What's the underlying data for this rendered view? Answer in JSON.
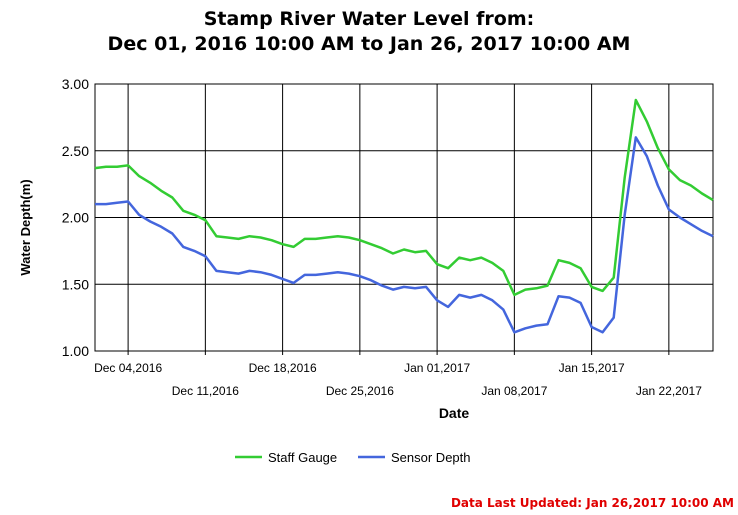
{
  "title_line1": "Stamp River Water Level from:",
  "title_line2": "Dec 01, 2016 10:00 AM to Jan 26, 2017 10:00 AM",
  "last_updated": "Data Last Updated: Jan 26,2017 10:00 AM",
  "colors": {
    "staff": "#33cc33",
    "sensor": "#4466dd",
    "updated": "#e00000"
  },
  "chart_data": {
    "type": "line",
    "xlabel": "Date",
    "ylabel": "Water Depth(m)",
    "ylim": [
      1.0,
      3.0
    ],
    "yticks": [
      "1.00",
      "1.50",
      "2.00",
      "2.50",
      "3.00"
    ],
    "xlim": [
      "2016-12-01",
      "2017-01-26"
    ],
    "xtick_labels": [
      {
        "date": "2016-12-04",
        "label": "Dec 04,2016",
        "row": 1
      },
      {
        "date": "2016-12-11",
        "label": "Dec 11,2016",
        "row": 2
      },
      {
        "date": "2016-12-18",
        "label": "Dec 18,2016",
        "row": 1
      },
      {
        "date": "2016-12-25",
        "label": "Dec 25,2016",
        "row": 2
      },
      {
        "date": "2017-01-01",
        "label": "Jan 01,2017",
        "row": 1
      },
      {
        "date": "2017-01-08",
        "label": "Jan 08,2017",
        "row": 2
      },
      {
        "date": "2017-01-15",
        "label": "Jan 15,2017",
        "row": 1
      },
      {
        "date": "2017-01-22",
        "label": "Jan 22,2017",
        "row": 2
      }
    ],
    "grid": true,
    "legend_position": "bottom",
    "series": [
      {
        "name": "Staff Gauge",
        "points": [
          [
            "2016-12-01",
            2.37
          ],
          [
            "2016-12-02",
            2.38
          ],
          [
            "2016-12-03",
            2.38
          ],
          [
            "2016-12-04",
            2.39
          ],
          [
            "2016-12-05",
            2.31
          ],
          [
            "2016-12-06",
            2.26
          ],
          [
            "2016-12-07",
            2.2
          ],
          [
            "2016-12-08",
            2.15
          ],
          [
            "2016-12-09",
            2.05
          ],
          [
            "2016-12-10",
            2.02
          ],
          [
            "2016-12-11",
            1.98
          ],
          [
            "2016-12-12",
            1.86
          ],
          [
            "2016-12-13",
            1.85
          ],
          [
            "2016-12-14",
            1.84
          ],
          [
            "2016-12-15",
            1.86
          ],
          [
            "2016-12-16",
            1.85
          ],
          [
            "2016-12-17",
            1.83
          ],
          [
            "2016-12-18",
            1.8
          ],
          [
            "2016-12-19",
            1.78
          ],
          [
            "2016-12-20",
            1.84
          ],
          [
            "2016-12-21",
            1.84
          ],
          [
            "2016-12-22",
            1.85
          ],
          [
            "2016-12-23",
            1.86
          ],
          [
            "2016-12-24",
            1.85
          ],
          [
            "2016-12-25",
            1.83
          ],
          [
            "2016-12-26",
            1.8
          ],
          [
            "2016-12-27",
            1.77
          ],
          [
            "2016-12-28",
            1.73
          ],
          [
            "2016-12-29",
            1.76
          ],
          [
            "2016-12-30",
            1.74
          ],
          [
            "2016-12-31",
            1.75
          ],
          [
            "2017-01-01",
            1.65
          ],
          [
            "2017-01-02",
            1.62
          ],
          [
            "2017-01-03",
            1.7
          ],
          [
            "2017-01-04",
            1.68
          ],
          [
            "2017-01-05",
            1.7
          ],
          [
            "2017-01-06",
            1.66
          ],
          [
            "2017-01-07",
            1.6
          ],
          [
            "2017-01-08",
            1.42
          ],
          [
            "2017-01-09",
            1.46
          ],
          [
            "2017-01-10",
            1.47
          ],
          [
            "2017-01-11",
            1.49
          ],
          [
            "2017-01-12",
            1.68
          ],
          [
            "2017-01-13",
            1.66
          ],
          [
            "2017-01-14",
            1.62
          ],
          [
            "2017-01-15",
            1.48
          ],
          [
            "2017-01-16",
            1.45
          ],
          [
            "2017-01-17",
            1.55
          ],
          [
            "2017-01-18",
            2.3
          ],
          [
            "2017-01-19",
            2.88
          ],
          [
            "2017-01-20",
            2.72
          ],
          [
            "2017-01-21",
            2.52
          ],
          [
            "2017-01-22",
            2.36
          ],
          [
            "2017-01-23",
            2.28
          ],
          [
            "2017-01-24",
            2.24
          ],
          [
            "2017-01-25",
            2.18
          ],
          [
            "2017-01-26",
            2.13
          ]
        ]
      },
      {
        "name": "Sensor Depth",
        "points": [
          [
            "2016-12-01",
            2.1
          ],
          [
            "2016-12-02",
            2.1
          ],
          [
            "2016-12-03",
            2.11
          ],
          [
            "2016-12-04",
            2.12
          ],
          [
            "2016-12-05",
            2.02
          ],
          [
            "2016-12-06",
            1.97
          ],
          [
            "2016-12-07",
            1.93
          ],
          [
            "2016-12-08",
            1.88
          ],
          [
            "2016-12-09",
            1.78
          ],
          [
            "2016-12-10",
            1.75
          ],
          [
            "2016-12-11",
            1.71
          ],
          [
            "2016-12-12",
            1.6
          ],
          [
            "2016-12-13",
            1.59
          ],
          [
            "2016-12-14",
            1.58
          ],
          [
            "2016-12-15",
            1.6
          ],
          [
            "2016-12-16",
            1.59
          ],
          [
            "2016-12-17",
            1.57
          ],
          [
            "2016-12-18",
            1.54
          ],
          [
            "2016-12-19",
            1.51
          ],
          [
            "2016-12-20",
            1.57
          ],
          [
            "2016-12-21",
            1.57
          ],
          [
            "2016-12-22",
            1.58
          ],
          [
            "2016-12-23",
            1.59
          ],
          [
            "2016-12-24",
            1.58
          ],
          [
            "2016-12-25",
            1.56
          ],
          [
            "2016-12-26",
            1.53
          ],
          [
            "2016-12-27",
            1.49
          ],
          [
            "2016-12-28",
            1.46
          ],
          [
            "2016-12-29",
            1.48
          ],
          [
            "2016-12-30",
            1.47
          ],
          [
            "2016-12-31",
            1.48
          ],
          [
            "2017-01-01",
            1.38
          ],
          [
            "2017-01-02",
            1.33
          ],
          [
            "2017-01-03",
            1.42
          ],
          [
            "2017-01-04",
            1.4
          ],
          [
            "2017-01-05",
            1.42
          ],
          [
            "2017-01-06",
            1.38
          ],
          [
            "2017-01-07",
            1.31
          ],
          [
            "2017-01-08",
            1.14
          ],
          [
            "2017-01-09",
            1.17
          ],
          [
            "2017-01-10",
            1.19
          ],
          [
            "2017-01-11",
            1.2
          ],
          [
            "2017-01-12",
            1.41
          ],
          [
            "2017-01-13",
            1.4
          ],
          [
            "2017-01-14",
            1.36
          ],
          [
            "2017-01-15",
            1.18
          ],
          [
            "2017-01-16",
            1.14
          ],
          [
            "2017-01-17",
            1.25
          ],
          [
            "2017-01-18",
            2.02
          ],
          [
            "2017-01-19",
            2.6
          ],
          [
            "2017-01-20",
            2.46
          ],
          [
            "2017-01-21",
            2.24
          ],
          [
            "2017-01-22",
            2.06
          ],
          [
            "2017-01-23",
            2.0
          ],
          [
            "2017-01-24",
            1.95
          ],
          [
            "2017-01-25",
            1.9
          ],
          [
            "2017-01-26",
            1.86
          ]
        ]
      }
    ]
  }
}
